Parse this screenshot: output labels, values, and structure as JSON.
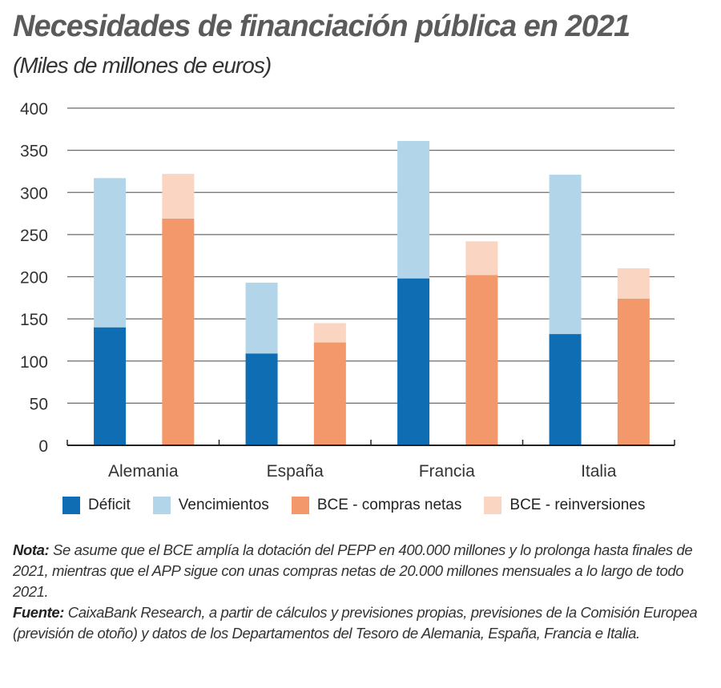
{
  "chart_data": {
    "type": "bar",
    "title": "Necesidades de financiación pública en 2021",
    "subtitle": "(Miles de millones de euros)",
    "xlabel": "",
    "ylabel": "",
    "ylim": [
      0,
      400
    ],
    "yticks": [
      0,
      50,
      100,
      150,
      200,
      250,
      300,
      350,
      400
    ],
    "ytick_labels": [
      "0",
      "50",
      "100",
      "150",
      "200",
      "250",
      "300",
      "350",
      "400"
    ],
    "grid": true,
    "legend_position": "bottom",
    "categories": [
      "Alemania",
      "España",
      "Francia",
      "Italia"
    ],
    "stacks": [
      {
        "name": "Necesidades",
        "series": [
          {
            "name": "Déficit",
            "color": "#0f6db4",
            "values": [
              140,
              109,
              198,
              132
            ]
          },
          {
            "name": "Vencimientos",
            "color": "#b3d5ea",
            "values": [
              177,
              84,
              163,
              189
            ]
          }
        ]
      },
      {
        "name": "BCE",
        "series": [
          {
            "name": "BCE - compras netas",
            "color": "#f2986a",
            "values": [
              269,
              122,
              202,
              174
            ]
          },
          {
            "name": "BCE - reinversiones",
            "color": "#f9d5c2",
            "values": [
              53,
              23,
              40,
              36
            ]
          }
        ]
      }
    ],
    "legend": [
      {
        "label": "Déficit",
        "color": "#0f6db4"
      },
      {
        "label": "Vencimientos",
        "color": "#b3d5ea"
      },
      {
        "label": "BCE - compras netas",
        "color": "#f2986a"
      },
      {
        "label": "BCE - reinversiones",
        "color": "#f9d5c2"
      }
    ]
  },
  "notes": {
    "nota_label": "Nota:",
    "nota_text": " Se asume que el BCE amplía la dotación del PEPP en 400.000 millones y lo prolonga hasta finales de 2021, mientras que el APP sigue con unas compras netas de 20.000 millones mensuales a lo largo de todo 2021.",
    "fuente_label": "Fuente:",
    "fuente_text": " CaixaBank Research, a partir de cálculos y previsiones propias, previsiones de la Comisión Europea (previsión de otoño) y datos de los Departamentos del Tesoro de Alemania, España, Francia e Italia."
  }
}
